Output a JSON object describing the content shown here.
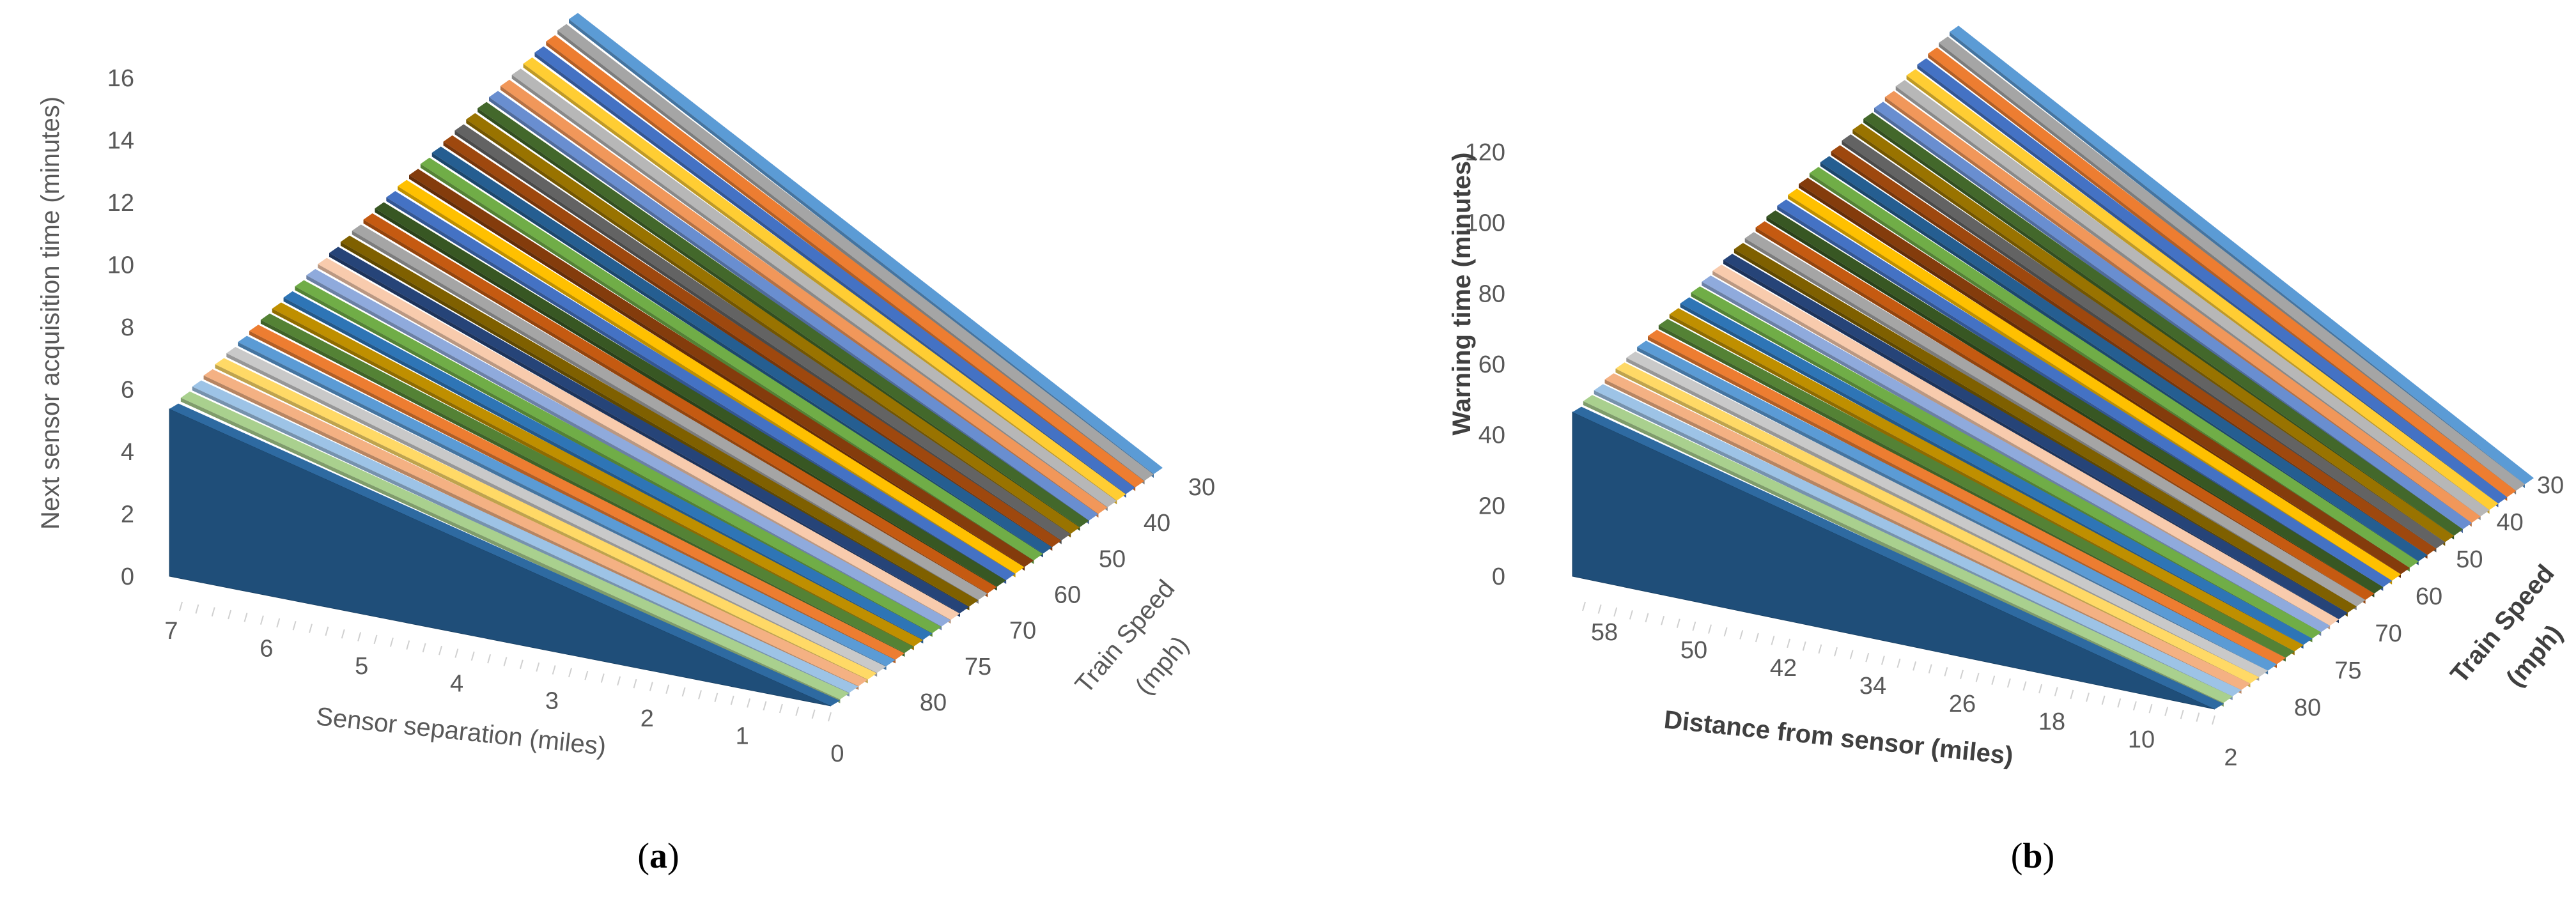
{
  "palette": [
    "#1f4e79",
    "#a9d08e",
    "#9dc3e6",
    "#f4b183",
    "#ffd966",
    "#c9c9c9",
    "#5b9bd5",
    "#ed7d31",
    "#548235",
    "#bf8f00",
    "#2e75b6",
    "#70ad47",
    "#8faadc",
    "#f8cbad",
    "#264478",
    "#7f6000",
    "#a5a5a5",
    "#c55a11",
    "#385723",
    "#4472c4",
    "#ffc000",
    "#843c0c",
    "#70ad47",
    "#255e91",
    "#9e480e",
    "#636363",
    "#997300",
    "#43682b",
    "#698ed0",
    "#f1975a",
    "#b7b7b7",
    "#ffcd33",
    "#4472c4",
    "#ed7d31",
    "#a5a5a5",
    "#5b9bd5"
  ],
  "chart_data": [
    {
      "type": "3d-area",
      "panel": "a",
      "panel_label": [
        "(",
        "a",
        ")"
      ],
      "zlabel": "Next sensor acquisition time (minutes)",
      "xlabel": "Sensor separation (miles)",
      "ylabel": [
        "Train Speed",
        "(mph)"
      ],
      "z_ticks": [
        "0",
        "2",
        "4",
        "6",
        "8",
        "10",
        "12",
        "14",
        "16"
      ],
      "zlim": [
        0,
        18
      ],
      "x_ticks": [
        "7",
        "6",
        "5",
        "4",
        "3",
        "2",
        "1",
        "0"
      ],
      "xlim": [
        0,
        7.5
      ],
      "speed_ticks": [
        "30",
        "40",
        "50",
        "60",
        "70",
        "75",
        "80"
      ],
      "series_count": 36,
      "peak_back": 17.5,
      "peak_front": 5.8
    },
    {
      "type": "3d-area",
      "panel": "b",
      "panel_label": [
        "(",
        "b",
        ")"
      ],
      "zlabel": "Warning time (minutes)",
      "xlabel": "Distance from sensor (miles)",
      "ylabel": [
        "Train Speed",
        "(mph)"
      ],
      "z_ticks": [
        "0",
        "20",
        "40",
        "60",
        "80",
        "100",
        "120"
      ],
      "zlim": [
        0,
        140
      ],
      "x_ticks": [
        "58",
        "50",
        "42",
        "34",
        "26",
        "18",
        "10",
        "2"
      ],
      "xlim": [
        0,
        60
      ],
      "speed_ticks": [
        "30",
        "40",
        "50",
        "60",
        "70",
        "75",
        "80"
      ],
      "series_count": 36,
      "peak_back": 138,
      "peak_front": 45
    }
  ]
}
